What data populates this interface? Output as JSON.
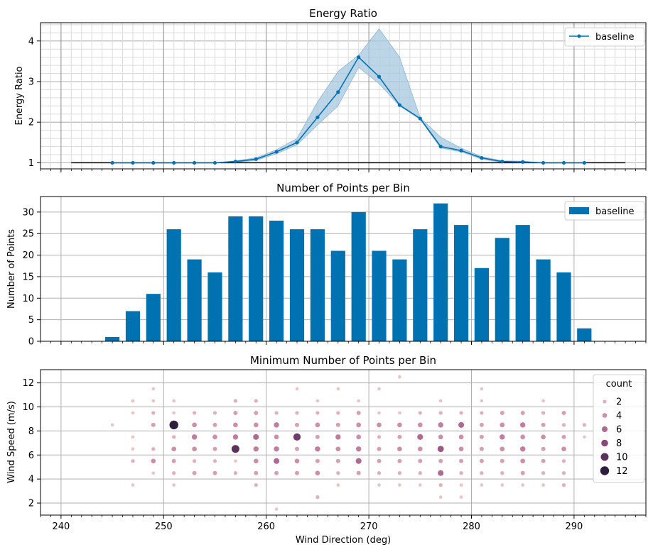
{
  "colors": {
    "primary": "#0072b2",
    "band": "#a6c8df",
    "baseline_line": "#000000",
    "grid_major": "#b0b0b0",
    "grid_minor": "#dcdcdc",
    "grid_vertical_dark": "#8c8c8c"
  },
  "chart_data": [
    {
      "type": "line",
      "title": "Energy Ratio",
      "xlabel": "",
      "ylabel": "Energy Ratio",
      "xlim": [
        238,
        297
      ],
      "ylim": [
        0.85,
        4.45
      ],
      "yticks": [
        1,
        2,
        3,
        4
      ],
      "grid": true,
      "legend": {
        "position": "top-right",
        "entries": [
          "baseline"
        ]
      },
      "reference_line": {
        "y": 1.0,
        "x": [
          241,
          295
        ]
      },
      "series": [
        {
          "name": "baseline",
          "x": [
            245,
            247,
            249,
            251,
            253,
            255,
            257,
            259,
            261,
            263,
            265,
            267,
            269,
            271,
            273,
            275,
            277,
            279,
            281,
            283,
            285,
            287,
            289,
            291
          ],
          "y": [
            1.0,
            1.0,
            1.0,
            1.0,
            1.0,
            1.0,
            1.03,
            1.09,
            1.27,
            1.5,
            2.12,
            2.74,
            3.6,
            3.12,
            2.42,
            2.09,
            1.4,
            1.3,
            1.12,
            1.03,
            1.02,
            1.0,
            1.0,
            1.0
          ],
          "lower": [
            1.0,
            1.0,
            1.0,
            1.0,
            1.0,
            1.0,
            1.01,
            1.06,
            1.22,
            1.44,
            1.93,
            2.4,
            3.35,
            2.95,
            2.4,
            2.07,
            1.36,
            1.27,
            1.09,
            1.01,
            1.0,
            1.0,
            1.0,
            1.0
          ],
          "upper": [
            1.0,
            1.0,
            1.0,
            1.0,
            1.0,
            1.0,
            1.05,
            1.12,
            1.32,
            1.6,
            2.5,
            3.25,
            3.65,
            4.3,
            3.6,
            2.11,
            1.63,
            1.36,
            1.15,
            1.05,
            1.04,
            1.0,
            1.0,
            1.0
          ]
        }
      ]
    },
    {
      "type": "bar",
      "title": "Number of Points per Bin",
      "xlabel": "",
      "ylabel": "Number of Points",
      "xlim": [
        238,
        297
      ],
      "ylim": [
        0,
        33.6
      ],
      "yticks": [
        0,
        5,
        10,
        15,
        20,
        25,
        30
      ],
      "grid": true,
      "legend": {
        "position": "top-right",
        "entries": [
          "baseline"
        ]
      },
      "series": [
        {
          "name": "baseline",
          "x": [
            245,
            247,
            249,
            251,
            253,
            255,
            257,
            259,
            261,
            263,
            265,
            267,
            269,
            271,
            273,
            275,
            277,
            279,
            281,
            283,
            285,
            287,
            289,
            291
          ],
          "values": [
            1,
            7,
            11,
            26,
            19,
            16,
            29,
            29,
            28,
            26,
            26,
            21,
            30,
            21,
            19,
            26,
            32,
            27,
            17,
            24,
            27,
            19,
            16,
            3
          ]
        }
      ]
    },
    {
      "type": "scatter",
      "title": "Minimum Number of Points per Bin",
      "xlabel": "Wind Direction (deg)",
      "ylabel": "Wind Speed (m/s)",
      "xlim": [
        238,
        297
      ],
      "ylim": [
        1.0,
        13.1
      ],
      "xticks": [
        240,
        250,
        260,
        270,
        280,
        290
      ],
      "yticks": [
        2,
        4,
        6,
        8,
        10,
        12
      ],
      "grid": true,
      "legend": {
        "position": "top-right",
        "title": "count",
        "entries": [
          "2",
          "4",
          "6",
          "8",
          "10",
          "12"
        ]
      },
      "count_range": [
        1,
        12
      ],
      "points": [
        [
          245,
          8.5,
          1
        ],
        [
          247,
          3.5,
          1
        ],
        [
          247,
          5.5,
          2
        ],
        [
          247,
          6.5,
          1
        ],
        [
          247,
          7.5,
          1
        ],
        [
          247,
          9.5,
          1
        ],
        [
          247,
          10.5,
          1
        ],
        [
          249,
          4.5,
          1
        ],
        [
          249,
          5.5,
          4
        ],
        [
          249,
          6.5,
          2
        ],
        [
          249,
          8.5,
          3
        ],
        [
          249,
          9.5,
          2
        ],
        [
          249,
          10.5,
          1
        ],
        [
          249,
          11.5,
          1
        ],
        [
          251,
          3.5,
          1
        ],
        [
          251,
          4.5,
          2
        ],
        [
          251,
          5.5,
          3
        ],
        [
          251,
          6.5,
          4
        ],
        [
          251,
          7.5,
          2
        ],
        [
          251,
          8.5,
          12
        ],
        [
          251,
          9.5,
          1
        ],
        [
          251,
          10.5,
          1
        ],
        [
          253,
          4.5,
          3
        ],
        [
          253,
          5.5,
          2
        ],
        [
          253,
          6.5,
          4
        ],
        [
          253,
          7.5,
          5
        ],
        [
          253,
          8.5,
          4
        ],
        [
          253,
          9.5,
          2
        ],
        [
          255,
          4.5,
          3
        ],
        [
          255,
          5.5,
          2
        ],
        [
          255,
          6.5,
          3
        ],
        [
          255,
          7.5,
          4
        ],
        [
          255,
          8.5,
          3
        ],
        [
          255,
          9.5,
          2
        ],
        [
          257,
          4.5,
          2
        ],
        [
          257,
          5.5,
          1
        ],
        [
          257,
          6.5,
          10
        ],
        [
          257,
          7.5,
          5
        ],
        [
          257,
          8.5,
          4
        ],
        [
          257,
          9.5,
          3
        ],
        [
          257,
          10.5,
          2
        ],
        [
          259,
          3.5,
          2
        ],
        [
          259,
          4.5,
          3
        ],
        [
          259,
          5.5,
          4
        ],
        [
          259,
          6.5,
          5
        ],
        [
          259,
          7.5,
          6
        ],
        [
          259,
          8.5,
          4
        ],
        [
          259,
          9.5,
          3
        ],
        [
          259,
          10.5,
          2
        ],
        [
          261,
          1.5,
          1
        ],
        [
          261,
          4.5,
          3
        ],
        [
          261,
          5.5,
          6
        ],
        [
          261,
          6.5,
          5
        ],
        [
          261,
          7.5,
          4
        ],
        [
          261,
          8.5,
          5
        ],
        [
          261,
          9.5,
          2
        ],
        [
          263,
          4.5,
          3
        ],
        [
          263,
          5.5,
          4
        ],
        [
          263,
          6.5,
          3
        ],
        [
          263,
          7.5,
          9
        ],
        [
          263,
          8.5,
          3
        ],
        [
          263,
          9.5,
          2
        ],
        [
          263,
          11.5,
          1
        ],
        [
          265,
          2.5,
          2
        ],
        [
          265,
          4.5,
          4
        ],
        [
          265,
          5.5,
          3
        ],
        [
          265,
          6.5,
          5
        ],
        [
          265,
          7.5,
          3
        ],
        [
          265,
          8.5,
          4
        ],
        [
          265,
          9.5,
          2
        ],
        [
          265,
          10.5,
          1
        ],
        [
          267,
          3.5,
          1
        ],
        [
          267,
          4.5,
          2
        ],
        [
          267,
          5.5,
          3
        ],
        [
          267,
          6.5,
          4
        ],
        [
          267,
          7.5,
          5
        ],
        [
          267,
          8.5,
          3
        ],
        [
          267,
          9.5,
          2
        ],
        [
          267,
          11.5,
          1
        ],
        [
          269,
          4.5,
          3
        ],
        [
          269,
          5.5,
          6
        ],
        [
          269,
          6.5,
          5
        ],
        [
          269,
          7.5,
          4
        ],
        [
          269,
          8.5,
          4
        ],
        [
          269,
          9.5,
          3
        ],
        [
          269,
          10.5,
          1
        ],
        [
          271,
          3.5,
          1
        ],
        [
          271,
          4.5,
          2
        ],
        [
          271,
          5.5,
          3
        ],
        [
          271,
          6.5,
          3
        ],
        [
          271,
          7.5,
          2
        ],
        [
          271,
          8.5,
          4
        ],
        [
          271,
          9.5,
          1
        ],
        [
          271,
          11.5,
          1
        ],
        [
          273,
          3.5,
          1
        ],
        [
          273,
          4.5,
          2
        ],
        [
          273,
          5.5,
          3
        ],
        [
          273,
          6.5,
          4
        ],
        [
          273,
          7.5,
          3
        ],
        [
          273,
          8.5,
          4
        ],
        [
          273,
          9.5,
          1
        ],
        [
          273,
          12.5,
          1
        ],
        [
          275,
          3.5,
          1
        ],
        [
          275,
          4.5,
          2
        ],
        [
          275,
          5.5,
          3
        ],
        [
          275,
          6.5,
          4
        ],
        [
          275,
          7.5,
          6
        ],
        [
          275,
          8.5,
          4
        ],
        [
          275,
          9.5,
          2
        ],
        [
          277,
          2.5,
          1
        ],
        [
          277,
          3.5,
          2
        ],
        [
          277,
          4.5,
          6
        ],
        [
          277,
          5.5,
          3
        ],
        [
          277,
          6.5,
          7
        ],
        [
          277,
          7.5,
          4
        ],
        [
          277,
          8.5,
          5
        ],
        [
          277,
          9.5,
          2
        ],
        [
          277,
          10.5,
          1
        ],
        [
          279,
          2.5,
          1
        ],
        [
          279,
          3.5,
          1
        ],
        [
          279,
          4.5,
          2
        ],
        [
          279,
          5.5,
          3
        ],
        [
          279,
          6.5,
          4
        ],
        [
          279,
          7.5,
          4
        ],
        [
          279,
          8.5,
          6
        ],
        [
          279,
          9.5,
          2
        ],
        [
          281,
          3.5,
          1
        ],
        [
          281,
          4.5,
          2
        ],
        [
          281,
          5.5,
          3
        ],
        [
          281,
          6.5,
          3
        ],
        [
          281,
          7.5,
          3
        ],
        [
          281,
          8.5,
          3
        ],
        [
          281,
          9.5,
          2
        ],
        [
          281,
          10.5,
          1
        ],
        [
          281,
          11.5,
          1
        ],
        [
          283,
          3.5,
          1
        ],
        [
          283,
          4.5,
          2
        ],
        [
          283,
          5.5,
          3
        ],
        [
          283,
          6.5,
          4
        ],
        [
          283,
          7.5,
          5
        ],
        [
          283,
          8.5,
          4
        ],
        [
          283,
          9.5,
          3
        ],
        [
          285,
          3.5,
          1
        ],
        [
          285,
          4.5,
          3
        ],
        [
          285,
          5.5,
          4
        ],
        [
          285,
          6.5,
          5
        ],
        [
          285,
          7.5,
          4
        ],
        [
          285,
          8.5,
          5
        ],
        [
          285,
          9.5,
          3
        ],
        [
          287,
          3.5,
          1
        ],
        [
          287,
          4.5,
          2
        ],
        [
          287,
          5.5,
          3
        ],
        [
          287,
          6.5,
          3
        ],
        [
          287,
          7.5,
          4
        ],
        [
          287,
          8.5,
          3
        ],
        [
          287,
          9.5,
          2
        ],
        [
          287,
          10.5,
          1
        ],
        [
          289,
          3.5,
          2
        ],
        [
          289,
          4.5,
          2
        ],
        [
          289,
          5.5,
          2
        ],
        [
          289,
          6.5,
          4
        ],
        [
          289,
          7.5,
          3
        ],
        [
          289,
          8.5,
          2
        ],
        [
          289,
          9.5,
          3
        ],
        [
          291,
          7.5,
          1
        ],
        [
          291,
          8.5,
          2
        ],
        [
          293,
          8.5,
          1
        ]
      ]
    }
  ]
}
